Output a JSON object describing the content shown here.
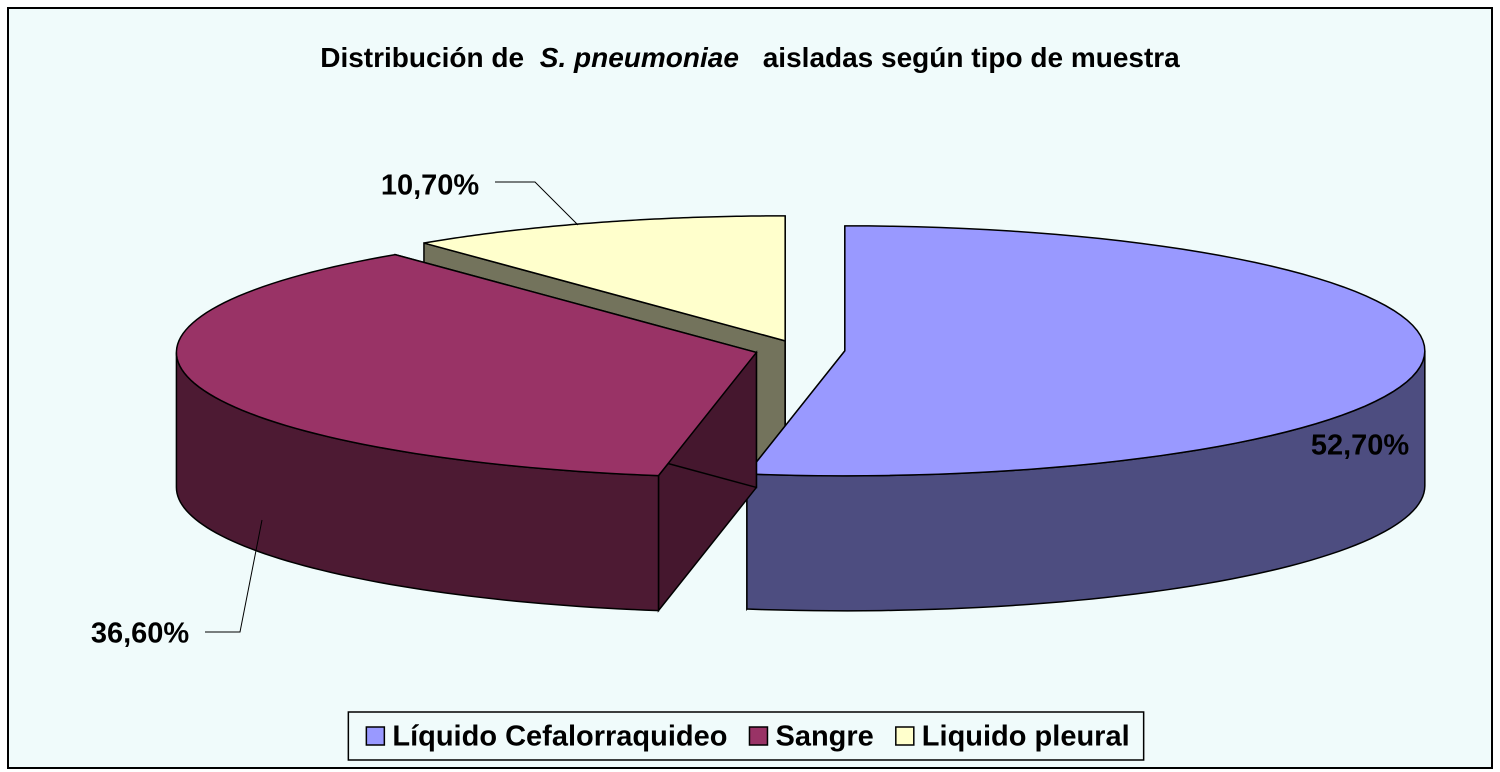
{
  "chart_data": {
    "type": "pie3d",
    "title": [
      "Distribución de",
      "S. pneumoniae",
      "aisladas según tipo de muestra"
    ],
    "categories": [
      "Líquido Cefalorraquideo",
      "Sangre",
      "Liquido pleural"
    ],
    "values": [
      52.7,
      36.6,
      10.7
    ],
    "value_labels": [
      "52,70%",
      "36,60%",
      "10,70%"
    ],
    "colors": [
      "#9999ff",
      "#993366",
      "#ffffcc"
    ],
    "legend": "bottom"
  }
}
